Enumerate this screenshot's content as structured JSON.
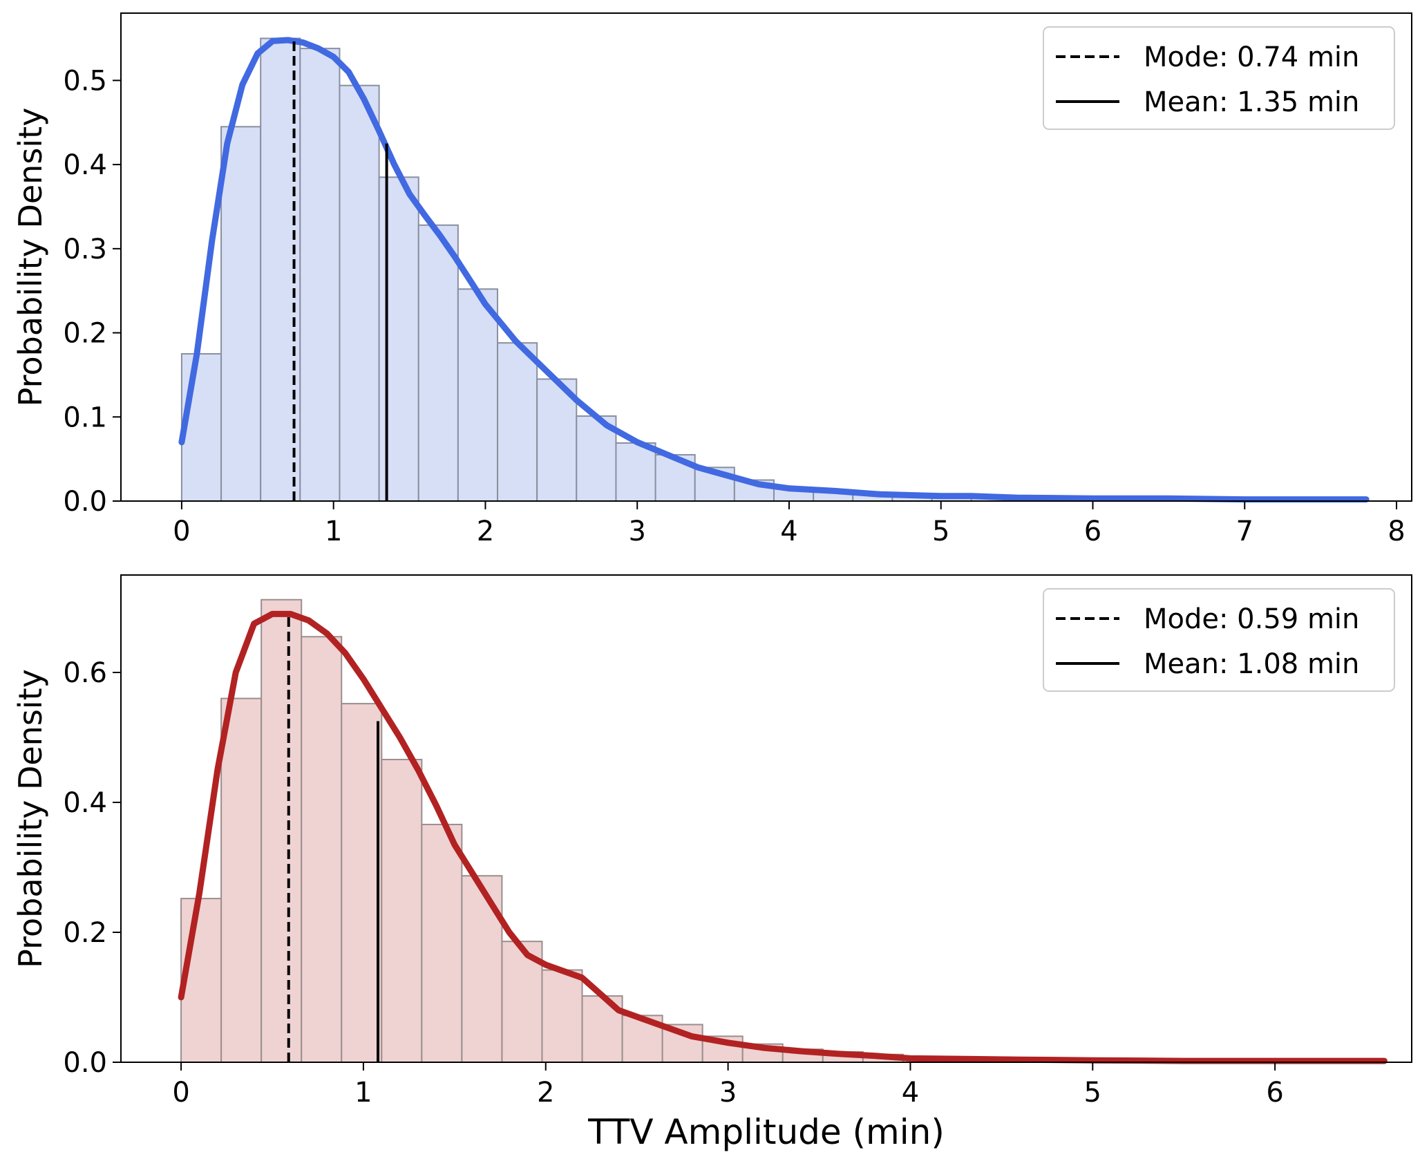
{
  "chart_data": [
    {
      "type": "histogram+kde",
      "xlabel": "",
      "ylabel": "Probability Density",
      "xlim": [
        -0.4,
        8.1
      ],
      "ylim": [
        0,
        0.58
      ],
      "xticks": [
        0,
        1,
        2,
        3,
        4,
        5,
        6,
        7,
        8
      ],
      "yticks": [
        0.0,
        0.1,
        0.2,
        0.3,
        0.4,
        0.5
      ],
      "xtick_labels": [
        "0",
        "1",
        "2",
        "3",
        "4",
        "5",
        "6",
        "7",
        "8"
      ],
      "ytick_labels": [
        "0.0",
        "0.1",
        "0.2",
        "0.3",
        "0.4",
        "0.5"
      ],
      "hist": {
        "bin_start": 0.0,
        "bin_width": 0.26,
        "values": [
          0.175,
          0.445,
          0.55,
          0.538,
          0.494,
          0.385,
          0.328,
          0.252,
          0.188,
          0.145,
          0.101,
          0.069,
          0.055,
          0.04,
          0.025,
          0.016,
          0.013,
          0.008,
          0.005,
          0.004,
          0.004,
          0.003,
          0.003,
          0.003,
          0.002,
          0.002,
          0.002,
          0.002,
          0.001,
          0.001
        ],
        "color": "#d6dff6",
        "edge_color": "#8a8fa0"
      },
      "kde": {
        "color": "#4169e1",
        "x": [
          0.0,
          0.1,
          0.2,
          0.3,
          0.4,
          0.5,
          0.6,
          0.7,
          0.8,
          0.9,
          1.0,
          1.1,
          1.2,
          1.3,
          1.4,
          1.5,
          1.6,
          1.7,
          1.8,
          1.9,
          2.0,
          2.2,
          2.4,
          2.6,
          2.8,
          3.0,
          3.2,
          3.4,
          3.6,
          3.8,
          4.0,
          4.3,
          4.6,
          5.0,
          5.2,
          5.5,
          6.0,
          6.5,
          7.0,
          7.5,
          7.8
        ],
        "y": [
          0.07,
          0.175,
          0.31,
          0.425,
          0.495,
          0.532,
          0.547,
          0.548,
          0.545,
          0.538,
          0.528,
          0.51,
          0.478,
          0.44,
          0.4,
          0.365,
          0.34,
          0.316,
          0.29,
          0.262,
          0.234,
          0.19,
          0.155,
          0.12,
          0.09,
          0.07,
          0.055,
          0.04,
          0.03,
          0.02,
          0.015,
          0.012,
          0.008,
          0.006,
          0.006,
          0.004,
          0.003,
          0.003,
          0.002,
          0.002,
          0.002
        ]
      },
      "mode": {
        "value": 0.74,
        "y_top": 0.548
      },
      "mean": {
        "value": 1.35,
        "y_top": 0.425
      },
      "legend": {
        "position": "upper right",
        "entries": [
          {
            "style": "dashed",
            "label": "Mode: 0.74 min"
          },
          {
            "style": "solid",
            "label": "Mean: 1.35 min"
          }
        ]
      }
    },
    {
      "type": "histogram+kde",
      "xlabel": "TTV Amplitude (min)",
      "ylabel": "Probability Density",
      "xlim": [
        -0.33,
        6.75
      ],
      "ylim": [
        0,
        0.75
      ],
      "xticks": [
        0,
        1,
        2,
        3,
        4,
        5,
        6
      ],
      "yticks": [
        0.0,
        0.2,
        0.4,
        0.6
      ],
      "xtick_labels": [
        "0",
        "1",
        "2",
        "3",
        "4",
        "5",
        "6"
      ],
      "ytick_labels": [
        "0.0",
        "0.2",
        "0.4",
        "0.6"
      ],
      "hist": {
        "bin_start": 0.0,
        "bin_width": 0.22,
        "values": [
          0.252,
          0.56,
          0.712,
          0.655,
          0.552,
          0.466,
          0.366,
          0.287,
          0.186,
          0.142,
          0.102,
          0.072,
          0.058,
          0.04,
          0.028,
          0.02,
          0.016,
          0.012,
          0.008,
          0.006,
          0.005,
          0.004,
          0.003,
          0.003,
          0.003,
          0.002,
          0.002,
          0.002,
          0.001,
          0.001
        ],
        "color": "#efd2d2",
        "edge_color": "#9a8e8e"
      },
      "kde": {
        "color": "#b22222",
        "x": [
          0.0,
          0.1,
          0.2,
          0.3,
          0.4,
          0.5,
          0.6,
          0.7,
          0.8,
          0.9,
          1.0,
          1.1,
          1.2,
          1.3,
          1.4,
          1.5,
          1.6,
          1.7,
          1.8,
          1.9,
          2.0,
          2.2,
          2.4,
          2.6,
          2.8,
          3.0,
          3.2,
          3.4,
          3.6,
          3.8,
          4.0,
          4.3,
          4.6,
          5.0,
          5.5,
          6.0,
          6.6
        ],
        "y": [
          0.1,
          0.26,
          0.45,
          0.6,
          0.675,
          0.69,
          0.69,
          0.68,
          0.66,
          0.63,
          0.59,
          0.545,
          0.5,
          0.45,
          0.395,
          0.335,
          0.29,
          0.245,
          0.2,
          0.165,
          0.15,
          0.13,
          0.08,
          0.06,
          0.04,
          0.03,
          0.022,
          0.017,
          0.013,
          0.01,
          0.006,
          0.005,
          0.004,
          0.003,
          0.002,
          0.002,
          0.002
        ]
      },
      "mode": {
        "value": 0.59,
        "y_top": 0.69
      },
      "mean": {
        "value": 1.08,
        "y_top": 0.525
      },
      "legend": {
        "position": "upper right",
        "entries": [
          {
            "style": "dashed",
            "label": "Mode: 0.59 min"
          },
          {
            "style": "solid",
            "label": "Mean: 1.08 min"
          }
        ]
      }
    }
  ]
}
